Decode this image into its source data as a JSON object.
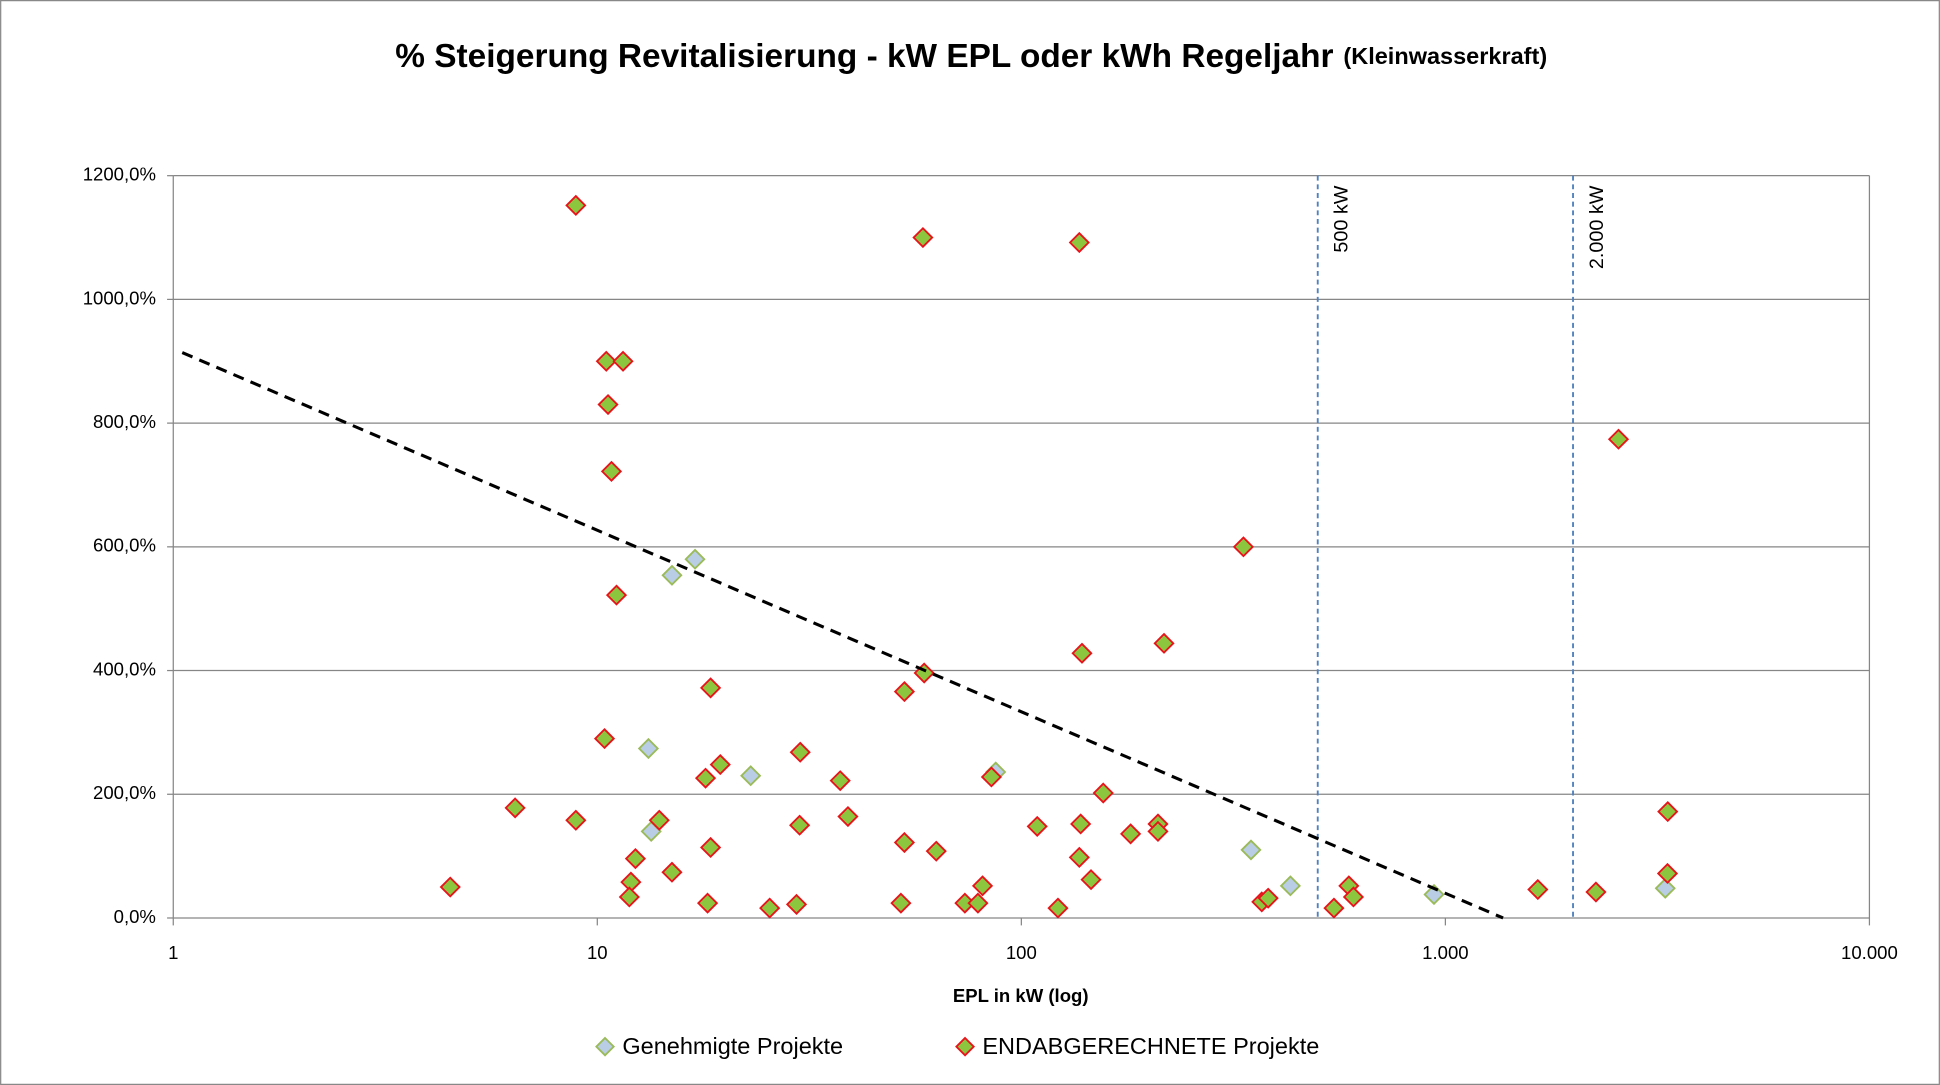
{
  "chart_data": {
    "type": "scatter",
    "title": "% Steigerung Revitalisierung - kW EPL oder kWh Regeljahr",
    "title_note": "(Kleinwasserkraft)",
    "x_label": "EPL in kW (log)",
    "x_scale": "log",
    "xlim": [
      1,
      10000
    ],
    "xticks": [
      1,
      10,
      100,
      {
        "value": 1000,
        "label": "1.000"
      },
      {
        "value": 10000,
        "label": "10.000"
      }
    ],
    "ylim": [
      0,
      1200
    ],
    "yticks": [
      {
        "value": 0,
        "label": "0,0%"
      },
      {
        "value": 200,
        "label": "200,0%"
      },
      {
        "value": 400,
        "label": "400,0%"
      },
      {
        "value": 600,
        "label": "600,0%"
      },
      {
        "value": 800,
        "label": "800,0%"
      },
      {
        "value": 1000,
        "label": "1000,0%"
      },
      {
        "value": 1200,
        "label": "1200,0%"
      }
    ],
    "grid": true,
    "legend": "bottom",
    "series": [
      {
        "name": "Genehmigte Projekte",
        "color": "#b9cde5",
        "edge_color": "#9bbb59",
        "x": [
          15,
          17,
          13.2,
          13.4,
          23,
          87,
          348,
          431,
          940,
          3300
        ],
        "values": [
          554,
          580,
          274,
          140,
          230,
          236,
          110,
          52,
          38,
          48
        ]
      },
      {
        "name": "ENDABGERECHNETE Projekte",
        "color": "#8cc63f",
        "edge_color": "#e8141b",
        "x": [
          8.9,
          58.6,
          137,
          10.5,
          11.5,
          10.6,
          10.8,
          11.1,
          334,
          2560,
          217,
          139,
          59,
          53,
          18.5,
          10.4,
          30.1,
          19.5,
          18,
          37.4,
          85,
          156,
          6.4,
          8.9,
          14,
          39,
          30,
          109,
          138,
          210,
          210,
          181,
          3345,
          3340,
          18.5,
          53,
          63,
          12.3,
          137,
          15,
          146,
          12,
          11.9,
          4.5,
          18.2,
          25.5,
          29.5,
          52,
          73.6,
          79,
          81,
          122,
          369,
          382,
          546,
          592,
          607,
          1652,
          2265
        ],
        "values": [
          1152,
          1100,
          1092,
          900,
          900,
          830,
          722,
          522,
          600,
          774,
          444,
          428,
          396,
          366,
          372,
          290,
          268,
          248,
          226,
          222,
          228,
          202,
          178,
          158,
          158,
          164,
          150,
          148,
          152,
          152,
          140,
          136,
          172,
          72,
          114,
          122,
          108,
          96,
          98,
          74,
          62,
          58,
          34,
          50,
          24,
          16,
          22,
          24,
          24,
          24,
          52,
          16,
          26,
          32,
          16,
          52,
          34,
          46,
          42
        ]
      }
    ],
    "trendline": {
      "x": [
        1.05,
        1368
      ],
      "values": [
        914,
        0
      ],
      "color": "#000000",
      "style": "dashed"
    },
    "vlines": [
      {
        "value": 500,
        "label": "500 kW"
      },
      {
        "value": 2000,
        "label": "2.000 kW"
      }
    ],
    "vline_color": "#4f81bd"
  }
}
